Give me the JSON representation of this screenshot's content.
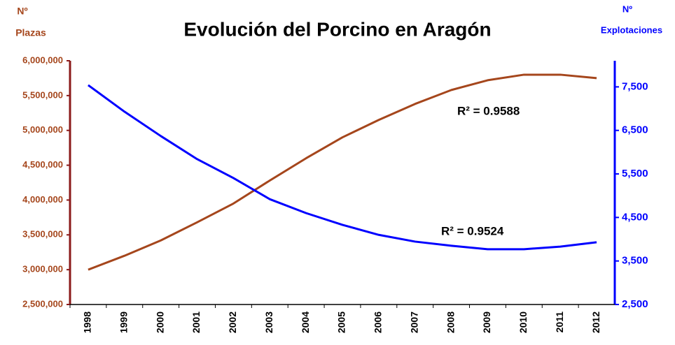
{
  "chart_data": {
    "type": "line",
    "title": "Evolución del Porcino en Aragón",
    "y_label": [
      "Nº",
      "Plazas"
    ],
    "y2_label": [
      "Nº",
      "Explotaciones"
    ],
    "categories": [
      "1998",
      "1999",
      "2000",
      "2001",
      "2002",
      "2003",
      "2004",
      "2005",
      "2006",
      "2007",
      "2008",
      "2009",
      "2010",
      "2011",
      "2012"
    ],
    "series": [
      {
        "name": "Plazas",
        "color": "#a5461c",
        "values": [
          3000000,
          3200000,
          3420000,
          3680000,
          3950000,
          4280000,
          4600000,
          4900000,
          5150000,
          5380000,
          5580000,
          5720000,
          5800000,
          5800000,
          5750000
        ]
      },
      {
        "name": "Explotaciones",
        "color": "#0000ff",
        "axis": "y2",
        "values": [
          7540,
          6930,
          6370,
          5840,
          5405,
          4920,
          4600,
          4330,
          4100,
          3945,
          3850,
          3770,
          3770,
          3830,
          3930
        ]
      }
    ],
    "ylim": [
      2500000,
      6000000
    ],
    "yticks": [
      {
        "value": 2500000,
        "label": "2,500,000"
      },
      {
        "value": 3000000,
        "label": "3,000,000"
      },
      {
        "value": 3500000,
        "label": "3,500,000"
      },
      {
        "value": 4000000,
        "label": "4,000,000"
      },
      {
        "value": 4500000,
        "label": "4,500,000"
      },
      {
        "value": 5000000,
        "label": "5,000,000"
      },
      {
        "value": 5500000,
        "label": "5,500,000"
      },
      {
        "value": 6000000,
        "label": "6,000,000"
      }
    ],
    "y2lim": [
      2500,
      8100
    ],
    "y2ticks": [
      {
        "value": 2500,
        "label": "2,500"
      },
      {
        "value": 3500,
        "label": "3,500"
      },
      {
        "value": 4500,
        "label": "4,500"
      },
      {
        "value": 5500,
        "label": "5,500"
      },
      {
        "value": 6500,
        "label": "6,500"
      },
      {
        "value": 7500,
        "label": "7,500"
      }
    ],
    "annotations": [
      {
        "text": "R² = 0.9588"
      },
      {
        "text": "R² = 0.9524"
      }
    ],
    "axis_colors": {
      "y": "#8b1a1a",
      "y2": "#0000ff"
    }
  }
}
